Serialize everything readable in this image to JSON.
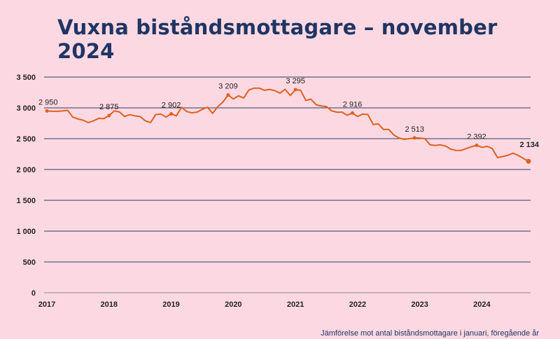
{
  "chart_data": {
    "type": "line",
    "title": "Vuxna biståndsmottagare – november 2024",
    "xlabel": "",
    "ylabel": "",
    "ylim": [
      0,
      3500
    ],
    "yticks": [
      0,
      500,
      1000,
      1500,
      2000,
      2500,
      3000,
      3500
    ],
    "ytick_labels": [
      "0",
      "500",
      "1 000",
      "1 500",
      "2 000",
      "2 500",
      "3 000",
      "3 500"
    ],
    "xtick_labels": [
      "2017",
      "2018",
      "2019",
      "2020",
      "2021",
      "2022",
      "2023",
      "2024"
    ],
    "x_start": "2017-01",
    "x_end": "2024-11",
    "grid": true,
    "line_color": "#e0601c",
    "series": [
      {
        "values": [
          2950,
          2945,
          2945,
          2950,
          2960,
          2850,
          2820,
          2800,
          2760,
          2790,
          2830,
          2825,
          2875,
          2950,
          2935,
          2860,
          2890,
          2870,
          2860,
          2790,
          2760,
          2890,
          2900,
          2850,
          2902,
          2870,
          3010,
          2940,
          2920,
          2930,
          2975,
          3010,
          2910,
          3020,
          3095,
          3209,
          3145,
          3195,
          3160,
          3290,
          3320,
          3320,
          3285,
          3300,
          3280,
          3240,
          3300,
          3200,
          3295,
          3285,
          3120,
          3140,
          3050,
          3030,
          3020,
          2950,
          2930,
          2930,
          2880,
          2916,
          2860,
          2900,
          2890,
          2730,
          2740,
          2650,
          2650,
          2560,
          2510,
          2490,
          2500,
          2513,
          2510,
          2500,
          2400,
          2390,
          2400,
          2380,
          2330,
          2310,
          2310,
          2340,
          2370,
          2392,
          2360,
          2375,
          2340,
          2195,
          2210,
          2230,
          2265,
          2230,
          2180,
          2134
        ]
      }
    ],
    "point_labels": [
      {
        "index": 0,
        "label": "2 950",
        "bold": false
      },
      {
        "index": 12,
        "label": "2 875",
        "bold": false
      },
      {
        "index": 24,
        "label": "2 902",
        "bold": false
      },
      {
        "index": 35,
        "label": "3 209",
        "bold": false
      },
      {
        "index": 48,
        "label": "3 295",
        "bold": false
      },
      {
        "index": 59,
        "label": "2 916",
        "bold": false
      },
      {
        "index": 71,
        "label": "2 513",
        "bold": false
      },
      {
        "index": 83,
        "label": "2 392",
        "bold": false
      },
      {
        "index": 93,
        "label": "2 134",
        "bold": true
      }
    ],
    "footnote": "Jämförelse mot antal biståndsmottagare i januari, föregående år"
  }
}
